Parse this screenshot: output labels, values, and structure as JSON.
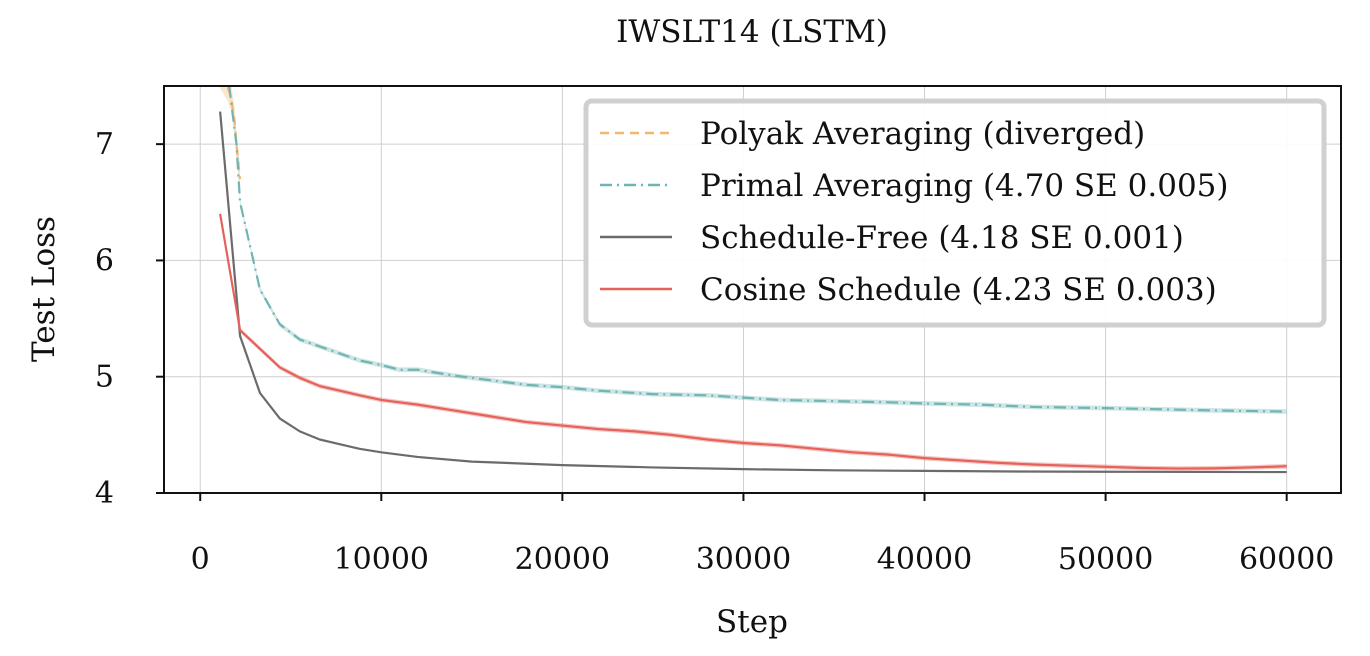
{
  "chart_data": {
    "type": "line",
    "title": "IWSLT14 (LSTM)",
    "xlabel": "Step",
    "ylabel": "Test Loss",
    "xlim": [
      -2000,
      63000
    ],
    "ylim": [
      4.0,
      7.5
    ],
    "xticks": [
      0,
      10000,
      20000,
      30000,
      40000,
      50000,
      60000
    ],
    "yticks": [
      4,
      5,
      6,
      7
    ],
    "grid": true,
    "legend_position": "top-right",
    "series": [
      {
        "name": "Polyak Averaging (diverged)",
        "color": "#f5b76e",
        "style": "dashed",
        "band": 0.12,
        "x": [
          1100,
          1500,
          1700,
          1900,
          2000,
          2100,
          2200
        ],
        "y": [
          7.6,
          7.5,
          7.4,
          7.2,
          7.0,
          6.85,
          6.7
        ]
      },
      {
        "name": "Primal Averaging (4.70 SE 0.005)",
        "color": "#6fb5b3",
        "style": "dashdot",
        "band": 0.02,
        "x": [
          1600,
          2000,
          2200,
          3300,
          4400,
          5500,
          6600,
          7700,
          8800,
          10000,
          11000,
          12000,
          14000,
          16000,
          18000,
          20000,
          22000,
          25000,
          28000,
          30000,
          32000,
          35000,
          38000,
          40000,
          43000,
          46000,
          50000,
          53000,
          56000,
          60000
        ],
        "y": [
          7.5,
          7.0,
          6.5,
          5.75,
          5.45,
          5.32,
          5.26,
          5.2,
          5.14,
          5.1,
          5.06,
          5.06,
          5.01,
          4.97,
          4.93,
          4.91,
          4.88,
          4.85,
          4.84,
          4.82,
          4.8,
          4.79,
          4.78,
          4.77,
          4.76,
          4.74,
          4.73,
          4.72,
          4.71,
          4.7
        ]
      },
      {
        "name": "Schedule-Free (4.18 SE 0.001)",
        "color": "#6b6b6b",
        "style": "solid",
        "band": 0,
        "x": [
          1100,
          2200,
          3300,
          4400,
          5500,
          6600,
          7700,
          8800,
          10000,
          12000,
          15000,
          20000,
          25000,
          30000,
          35000,
          40000,
          45000,
          50000,
          55000,
          60000
        ],
        "y": [
          7.28,
          5.35,
          4.86,
          4.64,
          4.53,
          4.46,
          4.42,
          4.38,
          4.35,
          4.31,
          4.27,
          4.24,
          4.22,
          4.205,
          4.195,
          4.19,
          4.185,
          4.183,
          4.181,
          4.18
        ]
      },
      {
        "name": "Cosine Schedule (4.23 SE 0.003)",
        "color": "#e5625a",
        "style": "solid",
        "band": 0.02,
        "x": [
          1100,
          2200,
          3300,
          4400,
          5500,
          6600,
          7700,
          8800,
          10000,
          11000,
          12000,
          14000,
          16000,
          18000,
          20000,
          22000,
          24000,
          26000,
          28000,
          30000,
          32000,
          34000,
          36000,
          38000,
          40000,
          42000,
          44000,
          46000,
          48000,
          50000,
          52000,
          54000,
          56000,
          58000,
          60000
        ],
        "y": [
          6.4,
          5.4,
          5.24,
          5.08,
          4.99,
          4.92,
          4.88,
          4.84,
          4.8,
          4.78,
          4.76,
          4.71,
          4.66,
          4.61,
          4.58,
          4.55,
          4.53,
          4.5,
          4.46,
          4.43,
          4.41,
          4.38,
          4.35,
          4.33,
          4.3,
          4.28,
          4.26,
          4.245,
          4.235,
          4.225,
          4.215,
          4.21,
          4.212,
          4.22,
          4.23
        ]
      }
    ]
  }
}
